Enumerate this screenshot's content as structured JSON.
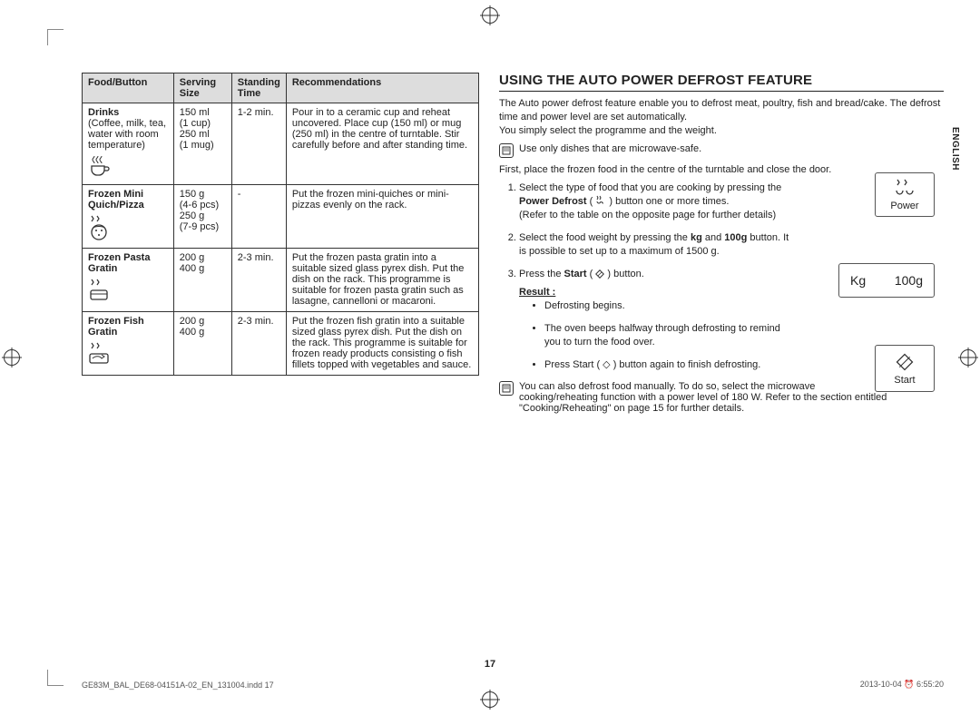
{
  "lang_label": "ENGLISH",
  "page_number": "17",
  "footer": {
    "file": "GE83M_BAL_DE68-04151A-02_EN_131004.indd   17",
    "timestamp": "2013-10-04   ⏰ 6:55:20"
  },
  "table": {
    "headers": [
      "Food/Button",
      "Serving Size",
      "Standing Time",
      "Recommendations"
    ],
    "rows": [
      {
        "name": "Drinks",
        "sub": "(Coffee, milk, tea, water with room temperature)",
        "icon": "cup-steam",
        "size": "150 ml\n(1 cup)\n250 ml\n(1 mug)",
        "time": "1-2 min.",
        "rec": "Pour in to a ceramic cup and reheat uncovered. Place cup (150 ml) or mug (250 ml) in the centre of turntable. Stir carefully before and after standing time."
      },
      {
        "name": "Frozen Mini Quich/Pizza",
        "sub": "",
        "icon": "snow-pizza",
        "size": "150 g\n(4-6 pcs)\n250 g\n(7-9 pcs)",
        "time": "-",
        "rec": "Put the frozen mini-quiches or mini-pizzas evenly on the rack."
      },
      {
        "name": "Frozen Pasta Gratin",
        "sub": "",
        "icon": "snow-dish",
        "size": "200 g\n400 g",
        "time": "2-3 min.",
        "rec": "Put the frozen pasta gratin into a suitable sized glass pyrex dish. Put the dish on the rack. This programme is suitable for frozen pasta gratin such as lasagne, cannelloni or macaroni."
      },
      {
        "name": "Frozen Fish Gratin",
        "sub": "",
        "icon": "snow-fish",
        "size": "200 g\n400 g",
        "time": "2-3 min.",
        "rec": "Put the frozen fish gratin into a suitable sized glass pyrex dish. Put the dish on the rack. This programme is suitable for frozen ready products consisting o fish fillets topped with vegetables and sauce."
      }
    ]
  },
  "right": {
    "heading": "USING THE AUTO POWER DEFROST FEATURE",
    "intro": "The Auto power defrost feature enable you to defrost meat, poultry, fish and bread/cake. The defrost time and power level are set automatically.\nYou simply select the programme and the weight.",
    "note1": "Use only dishes that are microwave-safe.",
    "pre_steps": "First, place the frozen food in the centre of the turntable and close the door.",
    "step1_a": "Select the type of food that you are cooking by pressing the ",
    "step1_b": "Power Defrost",
    "step1_c": " ( ",
    "step1_d": " ) button one or more times.\n(Refer to the table on the opposite page for further details)",
    "step2_a": "Select the food weight by pressing the ",
    "step2_b": "kg",
    "step2_c": " and ",
    "step2_d": "100g",
    "step2_e": " button. It is possible to set up to a maximum of 1500 g.",
    "step3_a": "Press the ",
    "step3_b": "Start",
    "step3_c": " ( ",
    "step3_d": " ) button.",
    "result_label": "Result :",
    "result_items": [
      "Defrosting begins.",
      "The oven beeps halfway through defrosting to remind you to turn the food over.",
      "Press Start ( ◇ ) button again to finish defrosting."
    ],
    "note2": "You can also defrost food manually. To do so, select the microwave cooking/reheating function with a power level of 180 W. Refer to the section entitled \"Cooking/Reheating\" on page 15 for further details.",
    "btn_power": "Power",
    "btn_kg": "Kg",
    "btn_100g": "100g",
    "btn_start": "Start"
  }
}
